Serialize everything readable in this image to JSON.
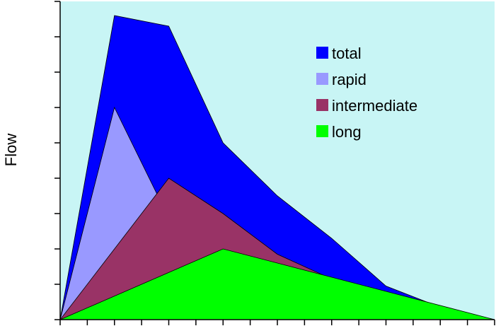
{
  "chart_data": {
    "type": "area",
    "title": "",
    "xlabel": "",
    "ylabel": "Flow",
    "x": [
      0,
      2,
      4,
      6,
      8,
      10,
      12,
      14,
      16
    ],
    "xlim": [
      0,
      16
    ],
    "ylim": [
      0,
      9
    ],
    "legend_position": "top-right",
    "background": "#c8f5f5",
    "series": [
      {
        "name": "total",
        "color": "#0000ff",
        "x": [
          0,
          2,
          4,
          6,
          8,
          10,
          12,
          14,
          16
        ],
        "values": [
          0,
          8.6,
          8.3,
          5.0,
          3.5,
          2.3,
          0.95,
          0.35,
          0
        ]
      },
      {
        "name": "rapid",
        "color": "#9999ff",
        "x": [
          0,
          2,
          3.6
        ],
        "values": [
          0,
          6.0,
          3.5
        ]
      },
      {
        "name": "intermediate",
        "color": "#993366",
        "x": [
          0,
          4,
          6,
          8,
          10
        ],
        "values": [
          0,
          4.0,
          3.0,
          1.85,
          1.15
        ]
      },
      {
        "name": "long",
        "color": "#00ff00",
        "x": [
          0,
          6,
          10,
          16
        ],
        "values": [
          0,
          2.0,
          1.2,
          0
        ]
      }
    ],
    "legend_order": [
      "total",
      "rapid",
      "intermediate",
      "long"
    ]
  }
}
